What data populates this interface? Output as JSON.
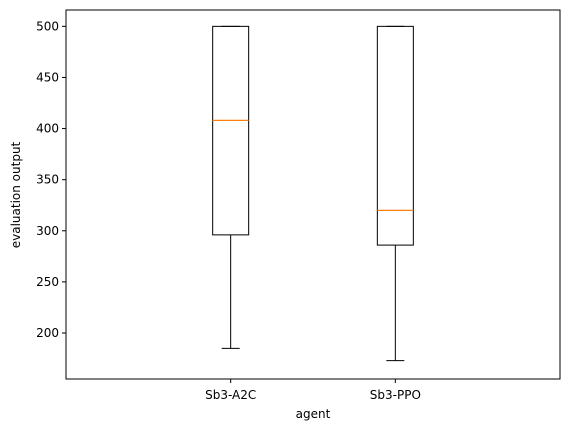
{
  "chart_data": {
    "type": "box",
    "xlabel": "agent",
    "ylabel": "evaluation output",
    "ylim": [
      155,
      516
    ],
    "yticks": [
      200,
      250,
      300,
      350,
      400,
      450,
      500
    ],
    "categories": [
      "Sb3-A2C",
      "Sb3-PPO"
    ],
    "boxes": [
      {
        "category": "Sb3-A2C",
        "whisker_low": 185,
        "q1": 296,
        "median": 408,
        "q3": 500,
        "whisker_high": 500
      },
      {
        "category": "Sb3-PPO",
        "whisker_low": 173,
        "q1": 286,
        "median": 320,
        "q3": 500,
        "whisker_high": 500
      }
    ],
    "colors": {
      "box": "#000000",
      "median": "#ff7f0e"
    },
    "grid": false,
    "legend": "none"
  }
}
